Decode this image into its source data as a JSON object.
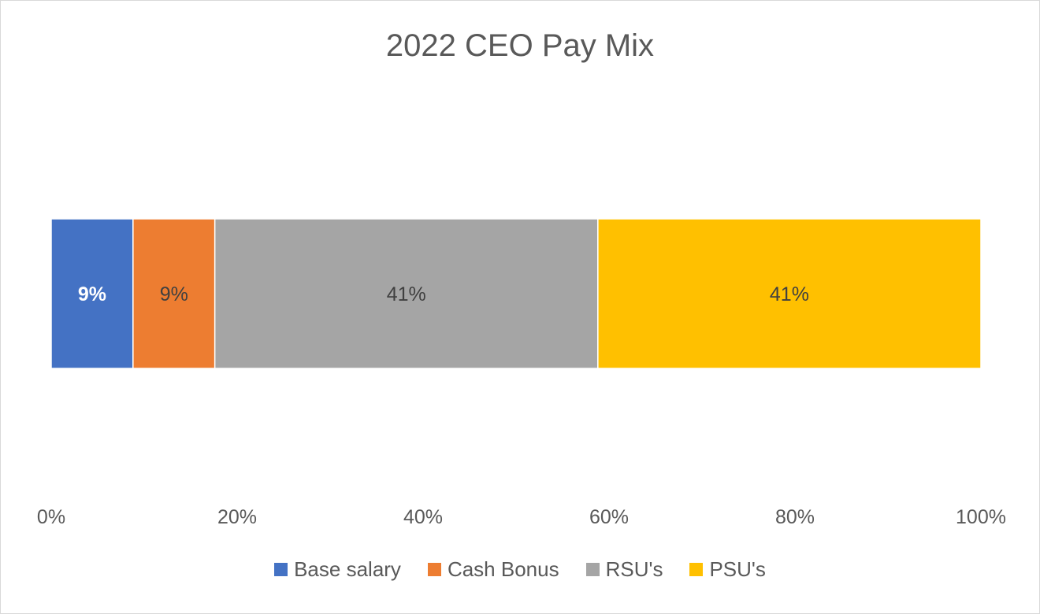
{
  "chart_data": {
    "type": "bar",
    "orientation": "horizontal",
    "stacked": "100%",
    "title": "2022 CEO Pay Mix",
    "xlim": [
      0,
      100
    ],
    "x_ticks": [
      "0%",
      "20%",
      "40%",
      "60%",
      "80%",
      "100%"
    ],
    "grid": false,
    "legend_position": "bottom",
    "series": [
      {
        "name": "Base salary",
        "value": 8.8,
        "label": "9%",
        "color": "#4472C4",
        "label_color": "#ffffff",
        "label_bold": true
      },
      {
        "name": "Cash Bonus",
        "value": 8.8,
        "label": "9%",
        "color": "#ED7D31",
        "label_color": "#404040",
        "label_bold": false
      },
      {
        "name": "RSU's",
        "value": 41.2,
        "label": "41%",
        "color": "#A5A5A5",
        "label_color": "#404040",
        "label_bold": false
      },
      {
        "name": "PSU's",
        "value": 41.2,
        "label": "41%",
        "color": "#FFC000",
        "label_color": "#404040",
        "label_bold": false
      }
    ]
  }
}
